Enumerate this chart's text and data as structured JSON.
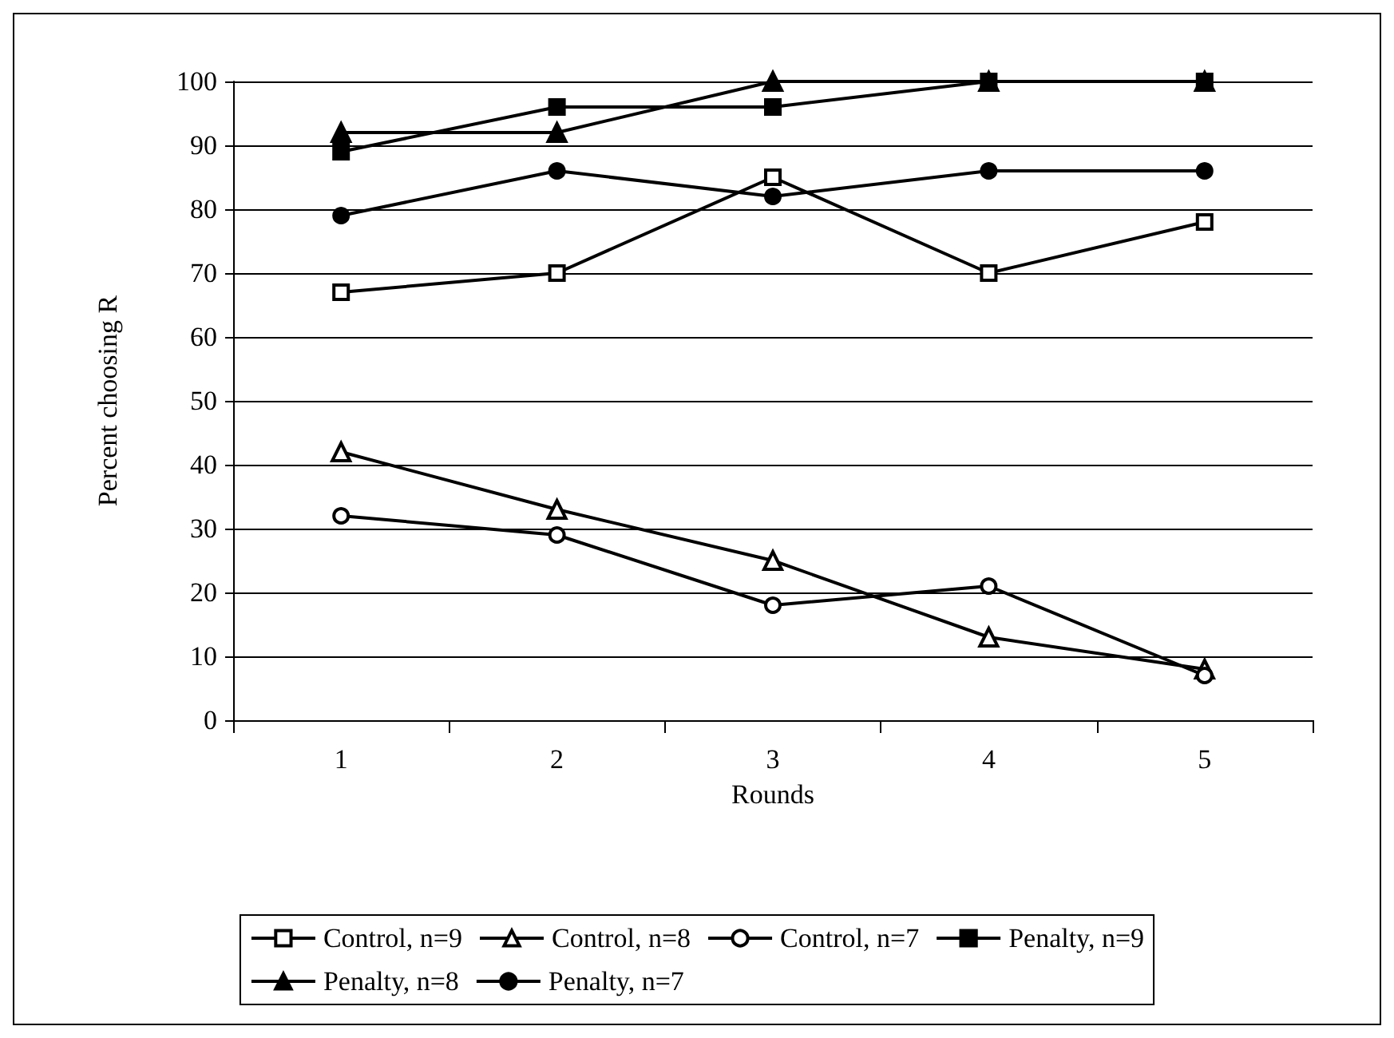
{
  "chart_data": {
    "type": "line",
    "xlabel": "Rounds",
    "ylabel": "Percent choosing R",
    "categories": [
      "1",
      "2",
      "3",
      "4",
      "5"
    ],
    "ylim": [
      0,
      100
    ],
    "yticks": [
      0,
      10,
      20,
      30,
      40,
      50,
      60,
      70,
      80,
      90,
      100
    ],
    "grid": "y",
    "legend": "bottom",
    "line_style": "solid",
    "series": [
      {
        "name": "Control, n=9",
        "color": "#000000",
        "marker": "square-open",
        "values": [
          67,
          70,
          85,
          70,
          78
        ]
      },
      {
        "name": "Control, n=8",
        "color": "#000000",
        "marker": "triangle-open",
        "values": [
          42,
          33,
          25,
          13,
          8
        ]
      },
      {
        "name": "Control, n=7",
        "color": "#000000",
        "marker": "circle-open",
        "values": [
          32,
          29,
          18,
          21,
          7
        ]
      },
      {
        "name": "Penalty, n=9",
        "color": "#000000",
        "marker": "square",
        "values": [
          89,
          96,
          96,
          100,
          100
        ]
      },
      {
        "name": "Penalty, n=8",
        "color": "#000000",
        "marker": "triangle",
        "values": [
          92,
          92,
          100,
          100,
          100
        ]
      },
      {
        "name": "Penalty, n=7",
        "color": "#000000",
        "marker": "circle",
        "values": [
          79,
          86,
          82,
          86,
          86
        ]
      }
    ]
  }
}
